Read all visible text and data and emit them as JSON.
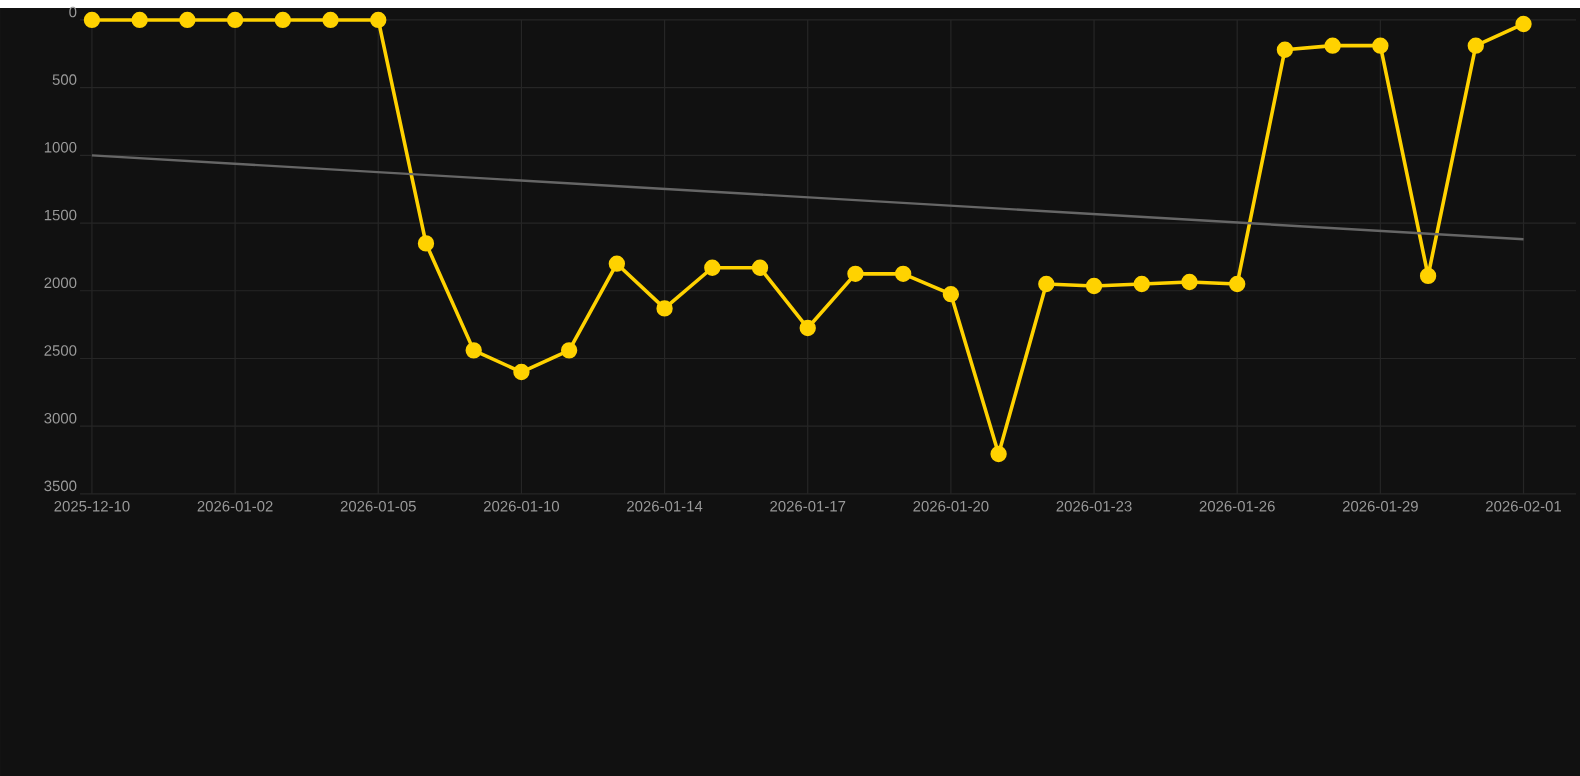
{
  "chart_data": {
    "type": "line",
    "categories": [
      "2025-12-10",
      null,
      null,
      "2026-01-02",
      null,
      null,
      "2026-01-05",
      null,
      null,
      "2026-01-10",
      null,
      null,
      "2026-01-14",
      null,
      null,
      "2026-01-17",
      null,
      null,
      "2026-01-20",
      null,
      null,
      "2026-01-23",
      null,
      null,
      "2026-01-26",
      null,
      null,
      "2026-01-29",
      null,
      null,
      "2026-02-01"
    ],
    "series": [
      {
        "color": "#ffd200",
        "marker": "circle",
        "values": [
          0,
          0,
          0,
          0,
          0,
          0,
          0,
          1650,
          2440,
          2600,
          2440,
          1800,
          2130,
          1830,
          1830,
          2275,
          1875,
          1875,
          2025,
          3205,
          1950,
          1965,
          1950,
          1935,
          1950,
          220,
          190,
          190,
          1890,
          190,
          30
        ]
      },
      {
        "type": "line",
        "color": "#666666",
        "marker": "none",
        "values": [
          1000,
          null,
          null,
          null,
          null,
          null,
          null,
          null,
          null,
          null,
          null,
          null,
          null,
          null,
          null,
          null,
          null,
          null,
          null,
          null,
          null,
          null,
          null,
          null,
          null,
          null,
          null,
          null,
          null,
          null,
          1620
        ]
      }
    ],
    "ylim": [
      3500,
      0
    ],
    "yticks": [
      0,
      500,
      1000,
      1500,
      2000,
      2500,
      3000,
      3500
    ],
    "grid": true
  }
}
